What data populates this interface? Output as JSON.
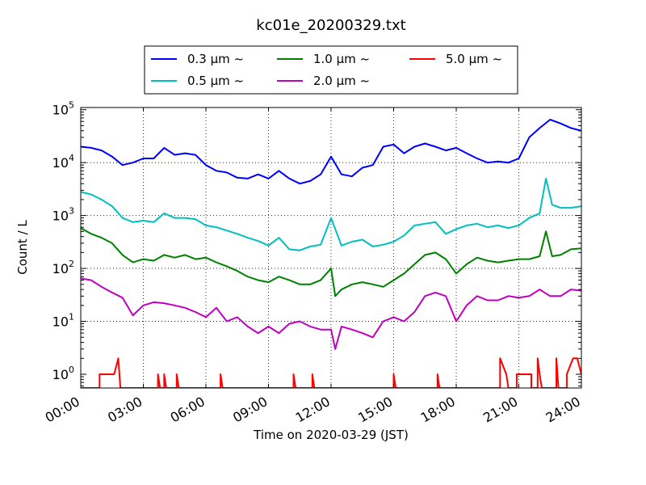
{
  "chart_data": {
    "type": "line",
    "title": "kc01e_20200329.txt",
    "xlabel": "Time on 2020-03-29 (JST)",
    "ylabel": "Count / L",
    "yscale": "log",
    "xlim": [
      "00:00",
      "24:00"
    ],
    "ylim": [
      0.55,
      110000
    ],
    "grid": true,
    "legend_placement": "top-center",
    "x_ticks": [
      "00:00",
      "03:00",
      "06:00",
      "09:00",
      "12:00",
      "15:00",
      "18:00",
      "21:00",
      "24:00"
    ],
    "y_ticks": [
      {
        "base": "10",
        "exp": "0",
        "value": 1
      },
      {
        "base": "10",
        "exp": "1",
        "value": 10
      },
      {
        "base": "10",
        "exp": "2",
        "value": 100
      },
      {
        "base": "10",
        "exp": "3",
        "value": 1000
      },
      {
        "base": "10",
        "exp": "4",
        "value": 10000
      },
      {
        "base": "10",
        "exp": "5",
        "value": 100000
      }
    ],
    "series": [
      {
        "name": "0.3 μm ~",
        "color": "#0000ff",
        "points": [
          [
            0,
            20000
          ],
          [
            0.5,
            19000
          ],
          [
            1,
            17000
          ],
          [
            1.5,
            13000
          ],
          [
            2,
            9000
          ],
          [
            2.5,
            10000
          ],
          [
            3,
            12000
          ],
          [
            3.5,
            12000
          ],
          [
            4,
            19000
          ],
          [
            4.5,
            14000
          ],
          [
            5,
            15000
          ],
          [
            5.5,
            14000
          ],
          [
            6,
            9000
          ],
          [
            6.5,
            7000
          ],
          [
            7,
            6500
          ],
          [
            7.5,
            5200
          ],
          [
            8,
            5000
          ],
          [
            8.5,
            6000
          ],
          [
            9,
            5000
          ],
          [
            9.5,
            7000
          ],
          [
            10,
            5000
          ],
          [
            10.5,
            4000
          ],
          [
            11,
            4500
          ],
          [
            11.5,
            6000
          ],
          [
            12,
            13000
          ],
          [
            12.5,
            6000
          ],
          [
            13,
            5500
          ],
          [
            13.5,
            8000
          ],
          [
            14,
            9000
          ],
          [
            14.5,
            20000
          ],
          [
            15,
            22000
          ],
          [
            15.5,
            15000
          ],
          [
            16,
            20000
          ],
          [
            16.5,
            23000
          ],
          [
            17,
            20000
          ],
          [
            17.5,
            17000
          ],
          [
            18,
            19000
          ],
          [
            18.5,
            15000
          ],
          [
            19,
            12000
          ],
          [
            19.5,
            10000
          ],
          [
            20,
            10500
          ],
          [
            20.5,
            10000
          ],
          [
            21,
            12000
          ],
          [
            21.5,
            30000
          ],
          [
            22,
            45000
          ],
          [
            22.5,
            65000
          ],
          [
            23,
            55000
          ],
          [
            23.5,
            45000
          ],
          [
            24,
            40000
          ]
        ]
      },
      {
        "name": "0.5 μm ~",
        "color": "#00bfbf",
        "points": [
          [
            0,
            2800
          ],
          [
            0.5,
            2500
          ],
          [
            1,
            2000
          ],
          [
            1.5,
            1500
          ],
          [
            2,
            900
          ],
          [
            2.5,
            750
          ],
          [
            3,
            800
          ],
          [
            3.5,
            750
          ],
          [
            4,
            1100
          ],
          [
            4.5,
            900
          ],
          [
            5,
            900
          ],
          [
            5.5,
            850
          ],
          [
            6,
            650
          ],
          [
            6.5,
            600
          ],
          [
            7,
            520
          ],
          [
            7.5,
            450
          ],
          [
            8,
            380
          ],
          [
            8.5,
            330
          ],
          [
            9,
            270
          ],
          [
            9.5,
            380
          ],
          [
            10,
            230
          ],
          [
            10.5,
            220
          ],
          [
            11,
            260
          ],
          [
            11.5,
            280
          ],
          [
            12,
            900
          ],
          [
            12.5,
            270
          ],
          [
            13,
            320
          ],
          [
            13.5,
            350
          ],
          [
            14,
            260
          ],
          [
            14.5,
            280
          ],
          [
            15,
            320
          ],
          [
            15.5,
            420
          ],
          [
            16,
            650
          ],
          [
            16.5,
            700
          ],
          [
            17,
            750
          ],
          [
            17.5,
            450
          ],
          [
            18,
            550
          ],
          [
            18.5,
            650
          ],
          [
            19,
            700
          ],
          [
            19.5,
            600
          ],
          [
            20,
            650
          ],
          [
            20.5,
            580
          ],
          [
            21,
            650
          ],
          [
            21.5,
            900
          ],
          [
            22,
            1100
          ],
          [
            22.3,
            5000
          ],
          [
            22.6,
            1600
          ],
          [
            23,
            1400
          ],
          [
            23.5,
            1400
          ],
          [
            24,
            1500
          ]
        ]
      },
      {
        "name": "1.0 μm ~",
        "color": "#008000",
        "points": [
          [
            0,
            580
          ],
          [
            0.5,
            450
          ],
          [
            1,
            380
          ],
          [
            1.5,
            300
          ],
          [
            2,
            180
          ],
          [
            2.5,
            130
          ],
          [
            3,
            150
          ],
          [
            3.5,
            140
          ],
          [
            4,
            180
          ],
          [
            4.5,
            160
          ],
          [
            5,
            180
          ],
          [
            5.5,
            150
          ],
          [
            6,
            160
          ],
          [
            6.5,
            130
          ],
          [
            7,
            110
          ],
          [
            7.5,
            90
          ],
          [
            8,
            70
          ],
          [
            8.5,
            60
          ],
          [
            9,
            55
          ],
          [
            9.5,
            70
          ],
          [
            10,
            60
          ],
          [
            10.5,
            50
          ],
          [
            11,
            50
          ],
          [
            11.5,
            60
          ],
          [
            12,
            100
          ],
          [
            12.2,
            30
          ],
          [
            12.5,
            40
          ],
          [
            13,
            50
          ],
          [
            13.5,
            55
          ],
          [
            14,
            50
          ],
          [
            14.5,
            45
          ],
          [
            15,
            60
          ],
          [
            15.5,
            80
          ],
          [
            16,
            120
          ],
          [
            16.5,
            180
          ],
          [
            17,
            200
          ],
          [
            17.5,
            150
          ],
          [
            18,
            80
          ],
          [
            18.5,
            120
          ],
          [
            19,
            160
          ],
          [
            19.5,
            140
          ],
          [
            20,
            130
          ],
          [
            20.5,
            140
          ],
          [
            21,
            150
          ],
          [
            21.5,
            150
          ],
          [
            22,
            170
          ],
          [
            22.3,
            500
          ],
          [
            22.6,
            170
          ],
          [
            23,
            180
          ],
          [
            23.5,
            230
          ],
          [
            24,
            240
          ]
        ]
      },
      {
        "name": "2.0 μm ~",
        "color": "#bf00bf",
        "points": [
          [
            0,
            65
          ],
          [
            0.5,
            60
          ],
          [
            1,
            45
          ],
          [
            1.5,
            35
          ],
          [
            2,
            28
          ],
          [
            2.5,
            13
          ],
          [
            3,
            20
          ],
          [
            3.5,
            23
          ],
          [
            4,
            22
          ],
          [
            4.5,
            20
          ],
          [
            5,
            18
          ],
          [
            5.5,
            15
          ],
          [
            6,
            12
          ],
          [
            6.5,
            18
          ],
          [
            7,
            10
          ],
          [
            7.5,
            12
          ],
          [
            8,
            8
          ],
          [
            8.5,
            6
          ],
          [
            9,
            8
          ],
          [
            9.5,
            6
          ],
          [
            10,
            9
          ],
          [
            10.5,
            10
          ],
          [
            11,
            8
          ],
          [
            11.5,
            7
          ],
          [
            12,
            7
          ],
          [
            12.2,
            3
          ],
          [
            12.5,
            8
          ],
          [
            13,
            7
          ],
          [
            13.5,
            6
          ],
          [
            14,
            5
          ],
          [
            14.5,
            10
          ],
          [
            15,
            12
          ],
          [
            15.5,
            10
          ],
          [
            16,
            15
          ],
          [
            16.5,
            30
          ],
          [
            17,
            35
          ],
          [
            17.5,
            30
          ],
          [
            18,
            10
          ],
          [
            18.5,
            20
          ],
          [
            19,
            30
          ],
          [
            19.5,
            25
          ],
          [
            20,
            25
          ],
          [
            20.5,
            30
          ],
          [
            21,
            28
          ],
          [
            21.5,
            30
          ],
          [
            22,
            40
          ],
          [
            22.5,
            30
          ],
          [
            23,
            30
          ],
          [
            23.5,
            40
          ],
          [
            24,
            38
          ]
        ]
      },
      {
        "name": "5.0 μm ~",
        "color": "#ff0000",
        "points": [
          [
            0,
            0.5
          ],
          [
            0.9,
            0.5
          ],
          [
            0.9,
            1
          ],
          [
            1.6,
            1
          ],
          [
            1.8,
            2
          ],
          [
            1.9,
            0.5
          ],
          [
            3.7,
            0.5
          ],
          [
            3.7,
            1
          ],
          [
            3.8,
            0.5
          ],
          [
            4.0,
            0.5
          ],
          [
            4.0,
            1
          ],
          [
            4.1,
            0.5
          ],
          [
            4.6,
            0.5
          ],
          [
            4.6,
            1
          ],
          [
            4.7,
            0.5
          ],
          [
            6.7,
            0.5
          ],
          [
            6.7,
            1
          ],
          [
            6.8,
            0.5
          ],
          [
            10.2,
            0.5
          ],
          [
            10.2,
            1
          ],
          [
            10.3,
            0.5
          ],
          [
            11.1,
            0.5
          ],
          [
            11.1,
            1
          ],
          [
            11.2,
            0.5
          ],
          [
            15,
            0.5
          ],
          [
            15,
            1
          ],
          [
            15.1,
            0.5
          ],
          [
            17.1,
            0.5
          ],
          [
            17.1,
            1
          ],
          [
            17.2,
            0.5
          ],
          [
            20.1,
            0.5
          ],
          [
            20.1,
            2
          ],
          [
            20.4,
            1
          ],
          [
            20.5,
            0.5
          ],
          [
            20.9,
            0.5
          ],
          [
            20.9,
            1
          ],
          [
            21.6,
            1
          ],
          [
            21.6,
            0.5
          ],
          [
            21.9,
            0.5
          ],
          [
            21.9,
            2
          ],
          [
            22.0,
            1
          ],
          [
            22.1,
            0.5
          ],
          [
            22.8,
            0.5
          ],
          [
            22.8,
            2
          ],
          [
            22.9,
            0.5
          ],
          [
            23.3,
            0.5
          ],
          [
            23.3,
            1
          ],
          [
            23.6,
            2
          ],
          [
            23.8,
            2
          ],
          [
            24,
            1
          ]
        ]
      }
    ]
  }
}
